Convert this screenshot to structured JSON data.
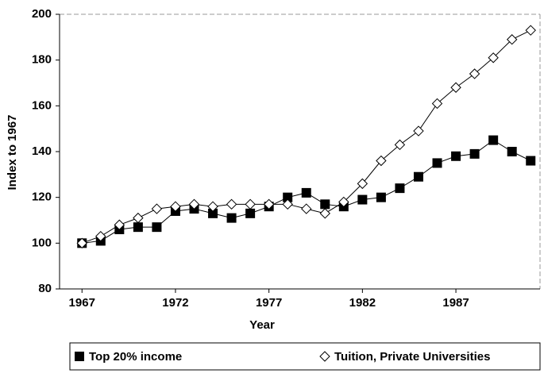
{
  "chart_data": {
    "type": "line",
    "x_label": "Year",
    "y_label": "Index to 1967",
    "x": [
      1967,
      1968,
      1969,
      1970,
      1971,
      1972,
      1973,
      1974,
      1975,
      1976,
      1977,
      1978,
      1979,
      1980,
      1981,
      1982,
      1983,
      1984,
      1985,
      1986,
      1987,
      1988,
      1989,
      1990,
      1991
    ],
    "series": [
      {
        "name": "Top 20% income",
        "color": "#000000",
        "marker": "square",
        "values": [
          100,
          101,
          106,
          107,
          107,
          114,
          115,
          113,
          111,
          113,
          116,
          120,
          122,
          117,
          116,
          119,
          120,
          124,
          129,
          135,
          138,
          139,
          145,
          140,
          136
        ]
      },
      {
        "name": "Tuition, Private Universities",
        "color": "#000000",
        "marker": "open-diamond",
        "values": [
          100,
          103,
          108,
          111,
          115,
          116,
          117,
          116,
          117,
          117,
          117,
          117,
          115,
          113,
          118,
          126,
          136,
          143,
          149,
          161,
          168,
          174,
          181,
          189,
          193
        ]
      }
    ],
    "xlim": [
      1965.8,
      1991.5
    ],
    "xticks": [
      1967,
      1972,
      1977,
      1982,
      1987
    ],
    "ylim": [
      80,
      200
    ],
    "yticks": [
      80,
      100,
      120,
      140,
      160,
      180,
      200
    ],
    "legend": "bottom"
  }
}
